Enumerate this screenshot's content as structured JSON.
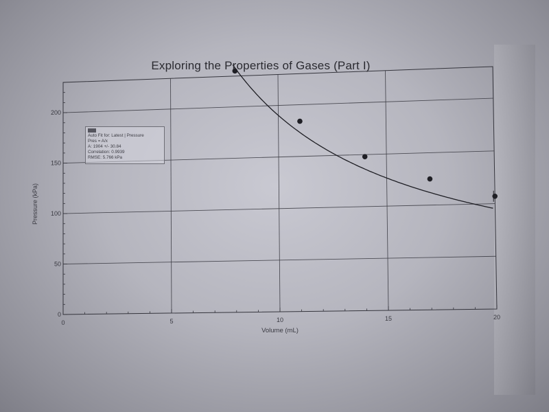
{
  "chart_data": {
    "type": "scatter",
    "title": "Exploring the Properties of Gases (Part I)",
    "xlabel": "Volume (mL)",
    "ylabel": "Pressure (kPa)",
    "xlim": [
      0,
      20
    ],
    "ylim": [
      0,
      230
    ],
    "x_ticks": [
      "0",
      "5",
      "10",
      "15",
      "20"
    ],
    "y_ticks": [
      "0",
      "50",
      "100",
      "150",
      "200"
    ],
    "grid": true,
    "series": [
      {
        "name": "Pressure",
        "points": [
          [
            8,
            235
          ],
          [
            11,
            184
          ],
          [
            14,
            148
          ],
          [
            17,
            125
          ],
          [
            20,
            107
          ]
        ]
      }
    ],
    "fit": {
      "label": "Auto Fit for: Latest | Pressure",
      "equation": "Pres = A/x",
      "a_line": "A: 1904 +/- 30.84",
      "correlation_line": "Correlation: 0.9939",
      "rmse_line": "RMSE: 5.766 kPa",
      "A": 1904
    }
  }
}
